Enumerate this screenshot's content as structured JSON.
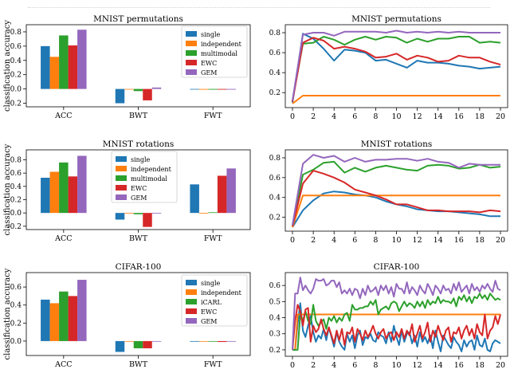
{
  "colors": {
    "single": "#1f77b4",
    "independent": "#ff7f0e",
    "multimodal": "#2ca02c",
    "EWC": "#d62728",
    "GEM": "#9467bd"
  },
  "ylabel": "classification accuracy",
  "chart_data": [
    {
      "type": "bar",
      "title": "MNIST permutations",
      "ylabel": "classification accuracy",
      "categories": [
        "ACC",
        "BWT",
        "FWT"
      ],
      "ylim": [
        -0.25,
        0.9
      ],
      "yticks": [
        "-0.2",
        "0.0",
        "0.2",
        "0.4",
        "0.6",
        "0.8"
      ],
      "legend": "top-right",
      "series": [
        {
          "name": "single",
          "color": "#1f77b4",
          "values": [
            0.6,
            -0.2,
            0.0
          ]
        },
        {
          "name": "independent",
          "color": "#ff7f0e",
          "values": [
            0.45,
            0.0,
            -0.01
          ]
        },
        {
          "name": "multimodal",
          "color": "#2ca02c",
          "values": [
            0.75,
            -0.03,
            -0.01
          ]
        },
        {
          "name": "EWC",
          "color": "#d62728",
          "values": [
            0.61,
            -0.16,
            -0.01
          ]
        },
        {
          "name": "GEM",
          "color": "#9467bd",
          "values": [
            0.83,
            0.02,
            -0.01
          ]
        }
      ]
    },
    {
      "type": "line",
      "title": "MNIST permutations",
      "x": [
        0,
        1,
        2,
        3,
        4,
        5,
        6,
        7,
        8,
        9,
        10,
        11,
        12,
        13,
        14,
        15,
        16,
        17,
        18,
        19,
        20
      ],
      "xticks": [
        "0",
        "2",
        "4",
        "6",
        "8",
        "10",
        "12",
        "14",
        "16",
        "18",
        "20"
      ],
      "ylim": [
        0.05,
        0.88
      ],
      "yticks": [
        "0.2",
        "0.4",
        "0.6",
        "0.8"
      ],
      "series": [
        {
          "name": "single",
          "color": "#1f77b4",
          "values": [
            0.1,
            0.79,
            0.74,
            0.64,
            0.52,
            0.63,
            0.62,
            0.6,
            0.52,
            0.53,
            0.49,
            0.45,
            0.52,
            0.5,
            0.5,
            0.49,
            0.47,
            0.46,
            0.44,
            0.45,
            0.46
          ]
        },
        {
          "name": "independent",
          "color": "#ff7f0e",
          "values": [
            0.09,
            0.17,
            0.17,
            0.17,
            0.17,
            0.17,
            0.17,
            0.17,
            0.17,
            0.17,
            0.17,
            0.17,
            0.17,
            0.17,
            0.17,
            0.17,
            0.17,
            0.17,
            0.17,
            0.17,
            0.17
          ]
        },
        {
          "name": "multimodal",
          "color": "#2ca02c",
          "values": [
            0.12,
            0.69,
            0.7,
            0.76,
            0.73,
            0.68,
            0.73,
            0.76,
            0.73,
            0.76,
            0.75,
            0.7,
            0.74,
            0.71,
            0.74,
            0.74,
            0.76,
            0.76,
            0.7,
            0.71,
            0.7
          ]
        },
        {
          "name": "EWC",
          "color": "#d62728",
          "values": [
            0.11,
            0.7,
            0.75,
            0.72,
            0.64,
            0.66,
            0.64,
            0.61,
            0.55,
            0.56,
            0.59,
            0.53,
            0.57,
            0.55,
            0.51,
            0.52,
            0.57,
            0.55,
            0.55,
            0.51,
            0.48
          ]
        },
        {
          "name": "GEM",
          "color": "#9467bd",
          "values": [
            0.12,
            0.78,
            0.8,
            0.8,
            0.77,
            0.81,
            0.81,
            0.81,
            0.81,
            0.8,
            0.82,
            0.8,
            0.81,
            0.8,
            0.81,
            0.8,
            0.81,
            0.8,
            0.8,
            0.8,
            0.8
          ]
        }
      ]
    },
    {
      "type": "bar",
      "title": "MNIST rotations",
      "ylabel": "classification accuracy",
      "categories": [
        "ACC",
        "BWT",
        "FWT"
      ],
      "ylim": [
        -0.25,
        0.95
      ],
      "yticks": [
        "-0.2",
        "0.0",
        "0.2",
        "0.4",
        "0.6",
        "0.8"
      ],
      "legend": "center",
      "series": [
        {
          "name": "single",
          "color": "#1f77b4",
          "values": [
            0.53,
            -0.1,
            0.43
          ]
        },
        {
          "name": "independent",
          "color": "#ff7f0e",
          "values": [
            0.62,
            0.0,
            0.0
          ]
        },
        {
          "name": "multimodal",
          "color": "#2ca02c",
          "values": [
            0.76,
            -0.02,
            0.01
          ]
        },
        {
          "name": "EWC",
          "color": "#d62728",
          "values": [
            0.55,
            -0.21,
            0.56
          ]
        },
        {
          "name": "GEM",
          "color": "#9467bd",
          "values": [
            0.86,
            0.0,
            0.67
          ]
        }
      ]
    },
    {
      "type": "line",
      "title": "MNIST rotations",
      "x": [
        0,
        1,
        2,
        3,
        4,
        5,
        6,
        7,
        8,
        9,
        10,
        11,
        12,
        13,
        14,
        15,
        16,
        17,
        18,
        19,
        20
      ],
      "xticks": [
        "0",
        "2",
        "4",
        "6",
        "8",
        "10",
        "12",
        "14",
        "16",
        "18",
        "20"
      ],
      "ylim": [
        0.06,
        0.88
      ],
      "yticks": [
        "0.2",
        "0.4",
        "0.6",
        "0.8"
      ],
      "series": [
        {
          "name": "single",
          "color": "#1f77b4",
          "values": [
            0.1,
            0.27,
            0.37,
            0.44,
            0.46,
            0.45,
            0.43,
            0.42,
            0.4,
            0.36,
            0.33,
            0.31,
            0.28,
            0.27,
            0.26,
            0.26,
            0.25,
            0.24,
            0.23,
            0.21,
            0.21
          ]
        },
        {
          "name": "independent",
          "color": "#ff7f0e",
          "values": [
            0.1,
            0.42,
            0.42,
            0.42,
            0.42,
            0.42,
            0.42,
            0.42,
            0.42,
            0.42,
            0.42,
            0.42,
            0.42,
            0.42,
            0.42,
            0.42,
            0.42,
            0.42,
            0.42,
            0.42,
            0.42
          ]
        },
        {
          "name": "multimodal",
          "color": "#2ca02c",
          "values": [
            0.12,
            0.63,
            0.68,
            0.75,
            0.76,
            0.65,
            0.7,
            0.66,
            0.7,
            0.72,
            0.7,
            0.68,
            0.67,
            0.72,
            0.73,
            0.72,
            0.69,
            0.7,
            0.73,
            0.7,
            0.71
          ]
        },
        {
          "name": "EWC",
          "color": "#d62728",
          "values": [
            0.11,
            0.54,
            0.67,
            0.64,
            0.6,
            0.55,
            0.48,
            0.45,
            0.42,
            0.38,
            0.33,
            0.33,
            0.3,
            0.27,
            0.27,
            0.26,
            0.26,
            0.26,
            0.25,
            0.27,
            0.26
          ]
        },
        {
          "name": "GEM",
          "color": "#9467bd",
          "values": [
            0.12,
            0.74,
            0.83,
            0.8,
            0.82,
            0.76,
            0.8,
            0.76,
            0.78,
            0.78,
            0.79,
            0.79,
            0.77,
            0.79,
            0.76,
            0.75,
            0.7,
            0.74,
            0.73,
            0.73,
            0.73
          ]
        }
      ]
    },
    {
      "type": "bar",
      "title": "CIFAR-100",
      "ylabel": "classification accuracy",
      "categories": [
        "ACC",
        "BWT",
        "FWT"
      ],
      "ylim": [
        -0.16,
        0.76
      ],
      "yticks": [
        "0.0",
        "0.2",
        "0.4",
        "0.6"
      ],
      "legend": "top-right",
      "series": [
        {
          "name": "single",
          "color": "#1f77b4",
          "values": [
            0.46,
            -0.12,
            0.0
          ]
        },
        {
          "name": "independent",
          "color": "#ff7f0e",
          "values": [
            0.42,
            0.0,
            0.0
          ]
        },
        {
          "name": "iCARL",
          "color": "#2ca02c",
          "values": [
            0.55,
            -0.08,
            0.0
          ]
        },
        {
          "name": "EWC",
          "color": "#d62728",
          "values": [
            0.5,
            -0.08,
            -0.01
          ]
        },
        {
          "name": "GEM",
          "color": "#9467bd",
          "values": [
            0.68,
            0.0,
            0.0
          ]
        }
      ]
    },
    {
      "type": "line",
      "title": "CIFAR-100",
      "x": [
        0,
        0.25,
        0.5,
        0.75,
        1,
        1.25,
        1.5,
        1.75,
        2,
        2.25,
        2.5,
        2.75,
        3,
        3.25,
        3.5,
        3.75,
        4,
        4.25,
        4.5,
        4.75,
        5,
        5.25,
        5.5,
        5.75,
        6,
        6.25,
        6.5,
        6.75,
        7,
        7.25,
        7.5,
        7.75,
        8,
        8.25,
        8.5,
        8.75,
        9,
        9.25,
        9.5,
        9.75,
        10,
        10.25,
        10.5,
        10.75,
        11,
        11.25,
        11.5,
        11.75,
        12,
        12.25,
        12.5,
        12.75,
        13,
        13.25,
        13.5,
        13.75,
        14,
        14.25,
        14.5,
        14.75,
        15,
        15.25,
        15.5,
        15.75,
        16,
        16.25,
        16.5,
        16.75,
        17,
        17.25,
        17.5,
        17.75,
        18,
        18.25,
        18.5,
        18.75,
        19,
        19.25,
        19.5,
        19.75,
        20
      ],
      "xticks": [
        "0",
        "2",
        "4",
        "6",
        "8",
        "10",
        "12",
        "14",
        "16",
        "18",
        "20"
      ],
      "ylim": [
        0.16,
        0.68
      ],
      "yticks": [
        "0.2",
        "0.3",
        "0.4",
        "0.5",
        "0.6"
      ],
      "series": [
        {
          "name": "single",
          "color": "#1f77b4",
          "values": [
            0.2,
            0.2,
            0.36,
            0.49,
            0.32,
            0.28,
            0.35,
            0.41,
            0.31,
            0.25,
            0.29,
            0.27,
            0.33,
            0.26,
            0.34,
            0.28,
            0.22,
            0.31,
            0.25,
            0.22,
            0.2,
            0.3,
            0.25,
            0.29,
            0.21,
            0.29,
            0.32,
            0.23,
            0.28,
            0.27,
            0.3,
            0.26,
            0.25,
            0.31,
            0.29,
            0.28,
            0.24,
            0.31,
            0.25,
            0.35,
            0.28,
            0.23,
            0.32,
            0.25,
            0.3,
            0.31,
            0.24,
            0.29,
            0.22,
            0.31,
            0.25,
            0.28,
            0.24,
            0.29,
            0.21,
            0.32,
            0.25,
            0.19,
            0.29,
            0.26,
            0.23,
            0.21,
            0.28,
            0.25,
            0.23,
            0.19,
            0.26,
            0.22,
            0.25,
            0.26,
            0.2,
            0.29,
            0.23,
            0.22,
            0.27,
            0.2,
            0.19,
            0.24,
            0.26,
            0.25,
            0.24
          ]
        },
        {
          "name": "independent",
          "color": "#ff7f0e",
          "values": [
            0.2,
            0.2,
            0.42,
            0.42,
            0.42,
            0.42,
            0.42,
            0.42,
            0.42,
            0.42,
            0.42,
            0.42,
            0.42,
            0.42,
            0.42,
            0.42,
            0.42,
            0.42,
            0.42,
            0.42,
            0.42,
            0.42,
            0.42,
            0.42,
            0.42,
            0.42,
            0.42,
            0.42,
            0.42,
            0.42,
            0.42,
            0.42,
            0.42,
            0.42,
            0.42,
            0.42,
            0.42,
            0.42,
            0.42,
            0.42,
            0.42,
            0.42,
            0.42,
            0.42,
            0.42,
            0.42,
            0.42,
            0.42,
            0.42,
            0.42,
            0.42,
            0.42,
            0.42,
            0.42,
            0.42,
            0.42,
            0.42,
            0.42,
            0.42,
            0.42,
            0.42,
            0.42,
            0.42,
            0.42,
            0.42,
            0.42,
            0.42,
            0.42,
            0.42,
            0.42,
            0.42,
            0.42,
            0.42,
            0.42,
            0.42,
            0.42,
            0.42,
            0.42,
            0.42,
            0.42,
            0.42
          ]
        },
        {
          "name": "iCARL",
          "color": "#2ca02c",
          "values": [
            0.2,
            0.2,
            0.2,
            0.42,
            0.38,
            0.44,
            0.38,
            0.36,
            0.48,
            0.38,
            0.35,
            0.37,
            0.39,
            0.33,
            0.4,
            0.38,
            0.41,
            0.37,
            0.4,
            0.38,
            0.42,
            0.43,
            0.38,
            0.48,
            0.45,
            0.45,
            0.46,
            0.46,
            0.47,
            0.47,
            0.5,
            0.48,
            0.51,
            0.42,
            0.45,
            0.46,
            0.47,
            0.45,
            0.49,
            0.5,
            0.49,
            0.44,
            0.47,
            0.5,
            0.47,
            0.49,
            0.48,
            0.46,
            0.5,
            0.47,
            0.5,
            0.46,
            0.51,
            0.48,
            0.5,
            0.49,
            0.53,
            0.49,
            0.51,
            0.5,
            0.5,
            0.49,
            0.52,
            0.47,
            0.53,
            0.51,
            0.54,
            0.5,
            0.53,
            0.49,
            0.53,
            0.52,
            0.55,
            0.52,
            0.54,
            0.51,
            0.55,
            0.53,
            0.51,
            0.52,
            0.51
          ]
        },
        {
          "name": "EWC",
          "color": "#d62728",
          "values": [
            0.2,
            0.38,
            0.48,
            0.44,
            0.35,
            0.45,
            0.46,
            0.25,
            0.35,
            0.31,
            0.33,
            0.39,
            0.33,
            0.29,
            0.34,
            0.29,
            0.24,
            0.32,
            0.26,
            0.33,
            0.23,
            0.31,
            0.3,
            0.34,
            0.25,
            0.33,
            0.3,
            0.26,
            0.32,
            0.28,
            0.31,
            0.35,
            0.3,
            0.27,
            0.31,
            0.33,
            0.27,
            0.3,
            0.31,
            0.26,
            0.31,
            0.28,
            0.33,
            0.27,
            0.32,
            0.29,
            0.36,
            0.25,
            0.3,
            0.35,
            0.27,
            0.31,
            0.37,
            0.25,
            0.32,
            0.28,
            0.35,
            0.3,
            0.26,
            0.32,
            0.34,
            0.25,
            0.31,
            0.3,
            0.34,
            0.27,
            0.32,
            0.35,
            0.29,
            0.33,
            0.27,
            0.36,
            0.31,
            0.29,
            0.42,
            0.27,
            0.32,
            0.34,
            0.41,
            0.36,
            0.42
          ]
        },
        {
          "name": "GEM",
          "color": "#9467bd",
          "values": [
            0.2,
            0.55,
            0.55,
            0.65,
            0.57,
            0.6,
            0.57,
            0.55,
            0.58,
            0.64,
            0.63,
            0.63,
            0.64,
            0.6,
            0.61,
            0.63,
            0.63,
            0.59,
            0.62,
            0.55,
            0.57,
            0.55,
            0.58,
            0.54,
            0.58,
            0.57,
            0.52,
            0.58,
            0.54,
            0.6,
            0.56,
            0.57,
            0.59,
            0.54,
            0.6,
            0.57,
            0.6,
            0.55,
            0.59,
            0.53,
            0.61,
            0.58,
            0.58,
            0.55,
            0.62,
            0.55,
            0.59,
            0.57,
            0.54,
            0.6,
            0.57,
            0.55,
            0.61,
            0.58,
            0.54,
            0.6,
            0.58,
            0.55,
            0.6,
            0.57,
            0.58,
            0.55,
            0.61,
            0.57,
            0.62,
            0.56,
            0.58,
            0.6,
            0.55,
            0.61,
            0.57,
            0.59,
            0.56,
            0.6,
            0.58,
            0.61,
            0.58,
            0.56,
            0.63,
            0.58,
            0.57
          ]
        }
      ]
    }
  ]
}
